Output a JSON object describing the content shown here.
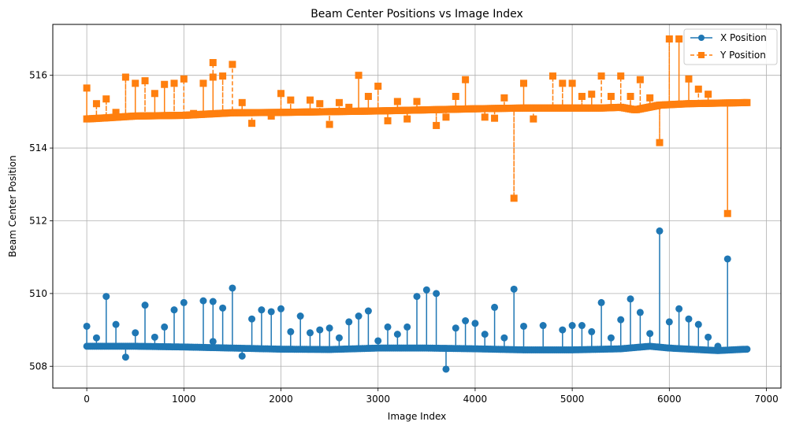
{
  "chart_data": {
    "type": "line",
    "title": "Beam Center Positions vs Image Index",
    "xlabel": "Image Index",
    "ylabel": "Beam Center Position",
    "xlim": [
      -350,
      7150
    ],
    "ylim": [
      507.4,
      517.4
    ],
    "xticks": [
      0,
      1000,
      2000,
      3000,
      4000,
      5000,
      6000,
      7000
    ],
    "xtick_labels": [
      "0",
      "1000",
      "2000",
      "3000",
      "4000",
      "5000",
      "6000",
      "7000"
    ],
    "yticks": [
      508,
      510,
      512,
      514,
      516
    ],
    "ytick_labels": [
      "508",
      "510",
      "512",
      "514",
      "516"
    ],
    "grid": true,
    "legend_position": "top-right",
    "series": [
      {
        "name": "X Position",
        "color": "#1f77b4",
        "marker": "circle",
        "linestyle": "solid",
        "baseline": [
          [
            0,
            508.55
          ],
          [
            500,
            508.55
          ],
          [
            1000,
            508.53
          ],
          [
            1500,
            508.5
          ],
          [
            2000,
            508.47
          ],
          [
            2500,
            508.46
          ],
          [
            3000,
            508.5
          ],
          [
            3500,
            508.5
          ],
          [
            4000,
            508.48
          ],
          [
            4500,
            508.45
          ],
          [
            5000,
            508.45
          ],
          [
            5500,
            508.48
          ],
          [
            5800,
            508.55
          ],
          [
            6000,
            508.5
          ],
          [
            6500,
            508.43
          ],
          [
            6800,
            508.47
          ]
        ],
        "spikes": [
          [
            0,
            509.1
          ],
          [
            100,
            508.78
          ],
          [
            200,
            509.92
          ],
          [
            300,
            509.15
          ],
          [
            400,
            508.25
          ],
          [
            500,
            508.92
          ],
          [
            600,
            509.68
          ],
          [
            700,
            508.8
          ],
          [
            800,
            509.08
          ],
          [
            900,
            509.55
          ],
          [
            1000,
            509.75
          ],
          [
            1200,
            509.8
          ],
          [
            1300,
            509.78
          ],
          [
            1300,
            508.68
          ],
          [
            1400,
            509.6
          ],
          [
            1500,
            510.15
          ],
          [
            1600,
            508.28
          ],
          [
            1700,
            509.3
          ],
          [
            1800,
            509.55
          ],
          [
            1900,
            509.5
          ],
          [
            2000,
            509.58
          ],
          [
            2100,
            508.95
          ],
          [
            2200,
            509.38
          ],
          [
            2300,
            508.92
          ],
          [
            2400,
            509.0
          ],
          [
            2500,
            509.05
          ],
          [
            2600,
            508.78
          ],
          [
            2700,
            509.22
          ],
          [
            2800,
            509.38
          ],
          [
            2900,
            509.52
          ],
          [
            3000,
            508.7
          ],
          [
            3100,
            509.08
          ],
          [
            3200,
            508.88
          ],
          [
            3300,
            509.08
          ],
          [
            3400,
            509.92
          ],
          [
            3500,
            510.1
          ],
          [
            3600,
            510.0
          ],
          [
            3700,
            507.92
          ],
          [
            3800,
            509.05
          ],
          [
            3900,
            509.25
          ],
          [
            4000,
            509.18
          ],
          [
            4100,
            508.88
          ],
          [
            4200,
            509.62
          ],
          [
            4300,
            508.78
          ],
          [
            4400,
            510.12
          ],
          [
            4500,
            509.1
          ],
          [
            4700,
            509.12
          ],
          [
            4900,
            509.0
          ],
          [
            5000,
            509.12
          ],
          [
            5100,
            509.12
          ],
          [
            5200,
            508.95
          ],
          [
            5300,
            509.75
          ],
          [
            5400,
            508.78
          ],
          [
            5500,
            509.28
          ],
          [
            5600,
            509.85
          ],
          [
            5700,
            509.48
          ],
          [
            5800,
            508.9
          ],
          [
            5900,
            511.72
          ],
          [
            6000,
            509.22
          ],
          [
            6100,
            509.58
          ],
          [
            6200,
            509.3
          ],
          [
            6300,
            509.15
          ],
          [
            6400,
            508.8
          ],
          [
            6500,
            508.55
          ],
          [
            6600,
            510.95
          ]
        ]
      },
      {
        "name": "Y Position",
        "color": "#ff7f0e",
        "marker": "square",
        "linestyle": "dashed",
        "baseline": [
          [
            0,
            514.8
          ],
          [
            200,
            514.83
          ],
          [
            500,
            514.88
          ],
          [
            1000,
            514.9
          ],
          [
            1500,
            514.97
          ],
          [
            2000,
            514.98
          ],
          [
            2500,
            515.0
          ],
          [
            3000,
            515.02
          ],
          [
            3500,
            515.05
          ],
          [
            4000,
            515.08
          ],
          [
            4500,
            515.1
          ],
          [
            5000,
            515.1
          ],
          [
            5300,
            515.1
          ],
          [
            5500,
            515.12
          ],
          [
            5650,
            515.05
          ],
          [
            5900,
            515.18
          ],
          [
            6200,
            515.22
          ],
          [
            6800,
            515.25
          ]
        ],
        "spikes": [
          [
            0,
            515.65
          ],
          [
            100,
            515.22
          ],
          [
            200,
            515.35
          ],
          [
            300,
            514.98
          ],
          [
            400,
            515.95
          ],
          [
            500,
            515.78
          ],
          [
            600,
            515.85
          ],
          [
            700,
            515.5
          ],
          [
            800,
            515.75
          ],
          [
            900,
            515.78
          ],
          [
            1000,
            515.9
          ],
          [
            1100,
            514.95
          ],
          [
            1200,
            515.78
          ],
          [
            1300,
            516.35
          ],
          [
            1300,
            515.95
          ],
          [
            1400,
            515.98
          ],
          [
            1500,
            516.3
          ],
          [
            1600,
            515.25
          ],
          [
            1700,
            514.68
          ],
          [
            1900,
            514.88
          ],
          [
            2000,
            515.5
          ],
          [
            2100,
            515.32
          ],
          [
            2300,
            515.32
          ],
          [
            2400,
            515.22
          ],
          [
            2500,
            514.65
          ],
          [
            2600,
            515.25
          ],
          [
            2700,
            515.12
          ],
          [
            2800,
            516.0
          ],
          [
            2900,
            515.42
          ],
          [
            3000,
            515.7
          ],
          [
            3100,
            514.75
          ],
          [
            3200,
            515.28
          ],
          [
            3300,
            514.8
          ],
          [
            3400,
            515.28
          ],
          [
            3600,
            514.62
          ],
          [
            3700,
            514.85
          ],
          [
            3800,
            515.42
          ],
          [
            3900,
            515.88
          ],
          [
            4100,
            514.85
          ],
          [
            4200,
            514.82
          ],
          [
            4300,
            515.38
          ],
          [
            4400,
            512.62
          ],
          [
            4500,
            515.78
          ],
          [
            4600,
            514.8
          ],
          [
            4800,
            515.98
          ],
          [
            4900,
            515.78
          ],
          [
            5000,
            515.78
          ],
          [
            5100,
            515.42
          ],
          [
            5200,
            515.48
          ],
          [
            5300,
            515.98
          ],
          [
            5400,
            515.42
          ],
          [
            5500,
            515.98
          ],
          [
            5600,
            515.42
          ],
          [
            5700,
            515.88
          ],
          [
            5800,
            515.38
          ],
          [
            5900,
            514.15
          ],
          [
            6000,
            517.0
          ],
          [
            6100,
            517.0
          ],
          [
            6200,
            515.9
          ],
          [
            6300,
            515.62
          ],
          [
            6400,
            515.48
          ],
          [
            6600,
            512.2
          ]
        ]
      }
    ]
  }
}
